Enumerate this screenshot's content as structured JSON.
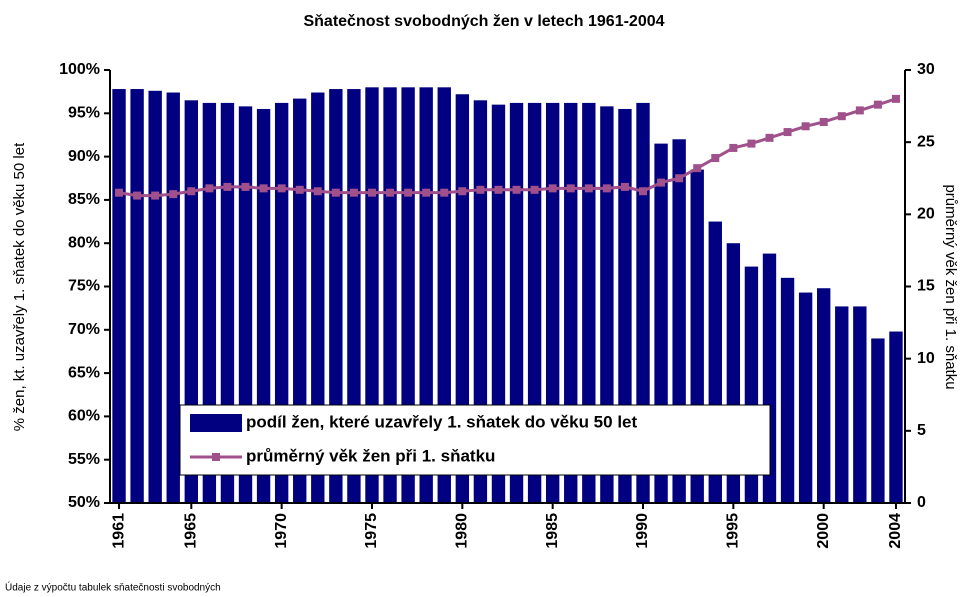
{
  "chart_data": {
    "type": "bar_line",
    "title": "Sňatečnost svobodných žen v letech 1961-2004",
    "y_label": "% žen, kt. uzavřely 1. sňatek do věku 50 let",
    "y2_label": "průměrný věk žen při 1. sňatku",
    "source": "Údaje z výpočtu tabulek sňatečnosti svobodných",
    "categories": [
      "1961",
      null,
      null,
      null,
      "1965",
      null,
      null,
      null,
      null,
      "1970",
      null,
      null,
      null,
      null,
      "1975",
      null,
      null,
      null,
      null,
      "1980",
      null,
      null,
      null,
      null,
      "1985",
      null,
      null,
      null,
      null,
      "1990",
      null,
      null,
      null,
      null,
      "1995",
      null,
      null,
      null,
      null,
      "2000",
      null,
      null,
      null,
      "2004"
    ],
    "series": [
      {
        "name": "podíl žen, které uzavřely 1. sňatek do věku 50 let",
        "type": "bar",
        "color": "#000080",
        "values": [
          97.8,
          97.8,
          97.6,
          97.4,
          96.5,
          96.2,
          96.2,
          95.8,
          95.5,
          96.2,
          96.7,
          97.4,
          97.8,
          97.8,
          98,
          98,
          98,
          98,
          98,
          97.2,
          96.5,
          96,
          96.2,
          96.2,
          96.2,
          96.2,
          96.2,
          95.8,
          95.5,
          96.2,
          91.5,
          92,
          88.5,
          82.5,
          80,
          77.3,
          78.8,
          76,
          74.3,
          74.8,
          72.7,
          72.7,
          69,
          69.8
        ]
      },
      {
        "name": "průměrný věk žen při 1. sňatku",
        "type": "line",
        "axis": "y2",
        "color": "#a0508a",
        "values": [
          21.5,
          21.3,
          21.3,
          21.4,
          21.6,
          21.8,
          21.9,
          21.9,
          21.8,
          21.8,
          21.7,
          21.6,
          21.5,
          21.5,
          21.5,
          21.5,
          21.5,
          21.5,
          21.5,
          21.6,
          21.7,
          21.7,
          21.7,
          21.7,
          21.8,
          21.8,
          21.8,
          21.8,
          21.9,
          21.6,
          22.2,
          22.5,
          23.2,
          23.9,
          24.6,
          24.9,
          25.3,
          25.7,
          26.1,
          26.4,
          26.8,
          27.2,
          27.6,
          28.0
        ]
      }
    ],
    "ylim": [
      50,
      100
    ],
    "yticks": [
      {
        "value": 50,
        "label": "50%"
      },
      {
        "value": 55,
        "label": "55%"
      },
      {
        "value": 60,
        "label": "60%"
      },
      {
        "value": 65,
        "label": "65%"
      },
      {
        "value": 70,
        "label": "70%"
      },
      {
        "value": 75,
        "label": "75%"
      },
      {
        "value": 80,
        "label": "80%"
      },
      {
        "value": 85,
        "label": "85%"
      },
      {
        "value": 90,
        "label": "90%"
      },
      {
        "value": 95,
        "label": "95%"
      },
      {
        "value": 100,
        "label": "100%"
      }
    ],
    "y2lim": [
      0,
      30
    ],
    "y2ticks": [
      0,
      5,
      10,
      15,
      20,
      25,
      30
    ]
  }
}
